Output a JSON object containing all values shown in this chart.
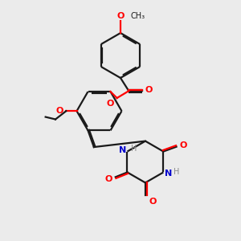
{
  "bg_color": "#ebebeb",
  "bond_color": "#1a1a1a",
  "oxygen_color": "#ff0000",
  "nitrogen_color": "#0000cc",
  "h_color": "#888888",
  "line_width": 1.6,
  "dbo": 0.055,
  "xlim": [
    0,
    10
  ],
  "ylim": [
    0,
    10
  ]
}
